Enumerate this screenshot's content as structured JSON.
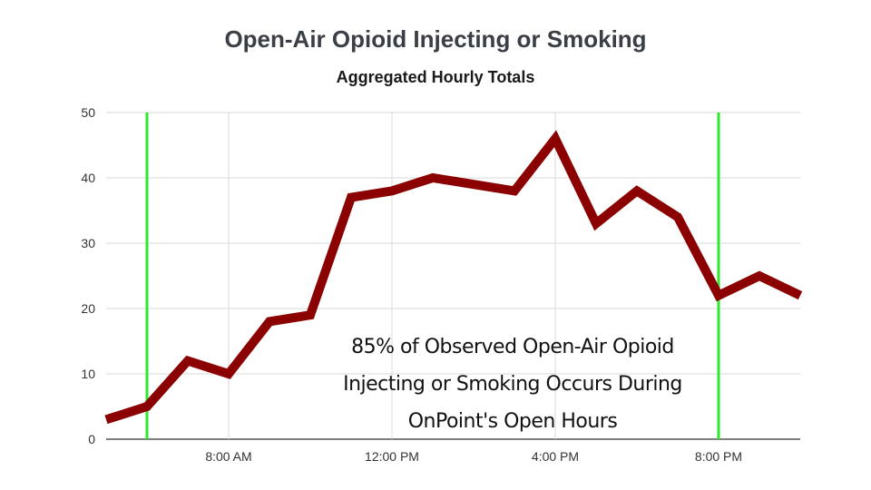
{
  "chart_data": {
    "type": "line",
    "title": "Open-Air Opioid Injecting or Smoking",
    "subtitle": "Aggregated Hourly Totals",
    "xlabel": "",
    "ylabel": "",
    "x_hours": [
      5,
      6,
      7,
      8,
      9,
      10,
      11,
      12,
      13,
      14,
      15,
      16,
      17,
      18,
      19,
      20,
      21,
      22
    ],
    "x_ticks": [
      {
        "hour": 8,
        "label": "8:00 AM"
      },
      {
        "hour": 12,
        "label": "12:00 PM"
      },
      {
        "hour": 16,
        "label": "4:00 PM"
      },
      {
        "hour": 20,
        "label": "8:00 PM"
      }
    ],
    "xlim": [
      5,
      22
    ],
    "y_ticks": [
      0,
      10,
      20,
      30,
      40,
      50
    ],
    "ylim": [
      0,
      50
    ],
    "series": [
      {
        "values": [
          3,
          5,
          12,
          10,
          18,
          19,
          37,
          38,
          40,
          39,
          38,
          46,
          33,
          38,
          34,
          22,
          25,
          22
        ]
      }
    ],
    "open_hours_markers": [
      6,
      20
    ],
    "grid": true,
    "colors": {
      "line": "#8b0000",
      "marker": "#2ee82e",
      "grid": "#d9d9d9"
    }
  },
  "annotation": {
    "lines": [
      "85% of Observed Open-Air Opioid",
      "Injecting or Smoking Occurs During",
      "OnPoint's Open Hours"
    ]
  }
}
